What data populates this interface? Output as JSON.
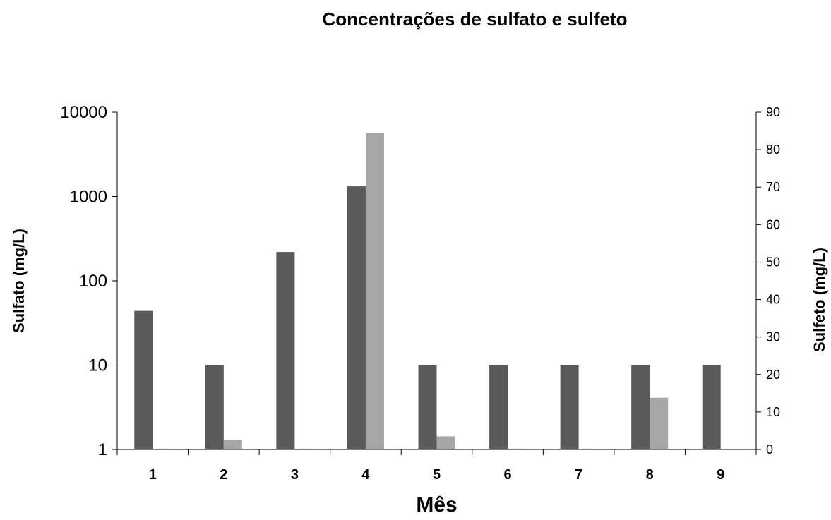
{
  "chart_data": {
    "type": "bar",
    "title": "Concentrações de sulfato e sulfeto",
    "xlabel": "Mês",
    "ylabel_left": "Sulfato (mg/L)",
    "ylabel_right": "Sulfeto (mg/L)",
    "categories": [
      "1",
      "2",
      "3",
      "4",
      "5",
      "6",
      "7",
      "8",
      "9"
    ],
    "y_left": {
      "scale": "log",
      "range": [
        1,
        10000
      ],
      "ticks": [
        1,
        10,
        100,
        1000,
        10000
      ],
      "tick_labels": [
        "1",
        "10",
        "100",
        "1000",
        "10000"
      ]
    },
    "y_right": {
      "scale": "linear",
      "range": [
        0,
        90
      ],
      "ticks": [
        0,
        10,
        20,
        30,
        40,
        50,
        60,
        70,
        80,
        90
      ],
      "tick_labels": [
        "0",
        "10",
        "20",
        "30",
        "40",
        "50",
        "60",
        "70",
        "80",
        "90"
      ]
    },
    "series": [
      {
        "axis": "left",
        "color": "#5a5a5a",
        "values": [
          44,
          10,
          220,
          1320,
          10,
          10,
          10,
          10,
          10
        ]
      },
      {
        "axis": "right",
        "color": "#a6a6a6",
        "values": [
          0.2,
          2.5,
          0.2,
          84.5,
          3.5,
          0.2,
          0.2,
          13.8,
          0
        ]
      }
    ],
    "legend": "none",
    "grid": false
  }
}
